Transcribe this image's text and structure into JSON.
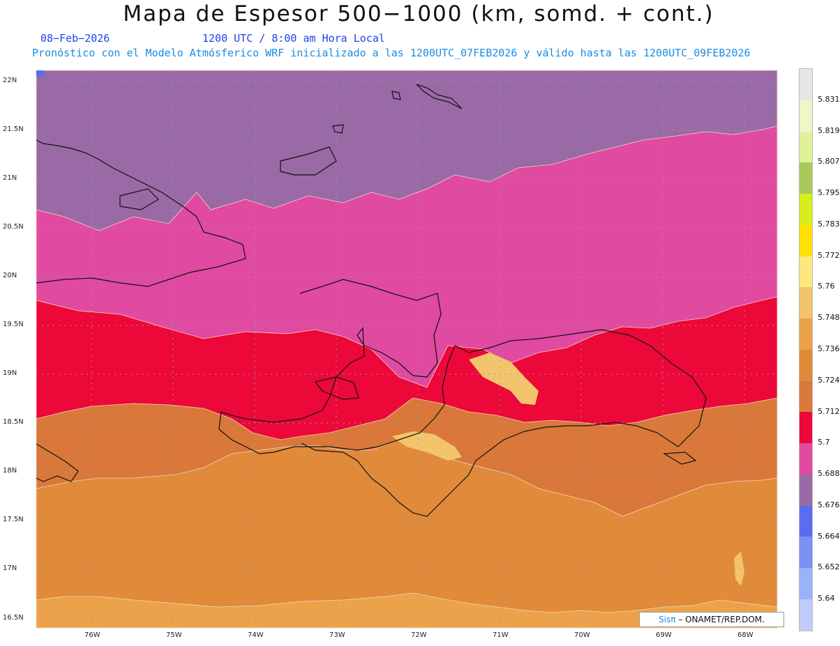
{
  "title": "Mapa de Espesor 500−1000 (km, somd. + cont.)",
  "date": "08−Feb−2026",
  "time": "1200 UTC / 8:00 am Hora Local",
  "model_line": "Pronóstico con el Modelo Atmósferico WRF inicializado a las 1200UTC_07FEB2026 y válido hasta las  1200UTC_09FEB2026",
  "credit": {
    "sis": "Sisπ",
    "rest": " – ONAMET/REP.DOM."
  },
  "lat_labels": [
    "22N",
    "21.5N",
    "21N",
    "20.5N",
    "20N",
    "19.5N",
    "19N",
    "18.5N",
    "18N",
    "17.5N",
    "17N",
    "16.5N"
  ],
  "lon_labels": [
    "76W",
    "75W",
    "74W",
    "73W",
    "72W",
    "71W",
    "70W",
    "69W",
    "68W"
  ],
  "colorbar": {
    "labels": [
      "5.831",
      "5.819",
      "5.807",
      "5.795",
      "5.783",
      "5.772",
      "5.76",
      "5.748",
      "5.736",
      "5.724",
      "5.712",
      "5.7",
      "5.688",
      "5.676",
      "5.664",
      "5.652",
      "5.64"
    ],
    "colors": [
      "#e6e6e6",
      "#eef6c8",
      "#dff29a",
      "#a9c95a",
      "#d8ee1a",
      "#ffe000",
      "#ffe680",
      "#f2c46b",
      "#eca24a",
      "#e08a3a",
      "#d9783a",
      "#ec0838",
      "#e04aa0",
      "#9a6aa6",
      "#5a6cf0",
      "#7a90f4",
      "#9ab2f8",
      "#c0ccfb"
    ]
  },
  "regions": {
    "band_5676": "#9a6aa6",
    "band_5688": "#e04aa0",
    "band_5700": "#ec0838",
    "band_5712": "#d9783a",
    "band_5724": "#e08a3a",
    "band_5736": "#eca24a",
    "band_5748": "#f2c46b",
    "band_5664": "#5a6cf0"
  }
}
